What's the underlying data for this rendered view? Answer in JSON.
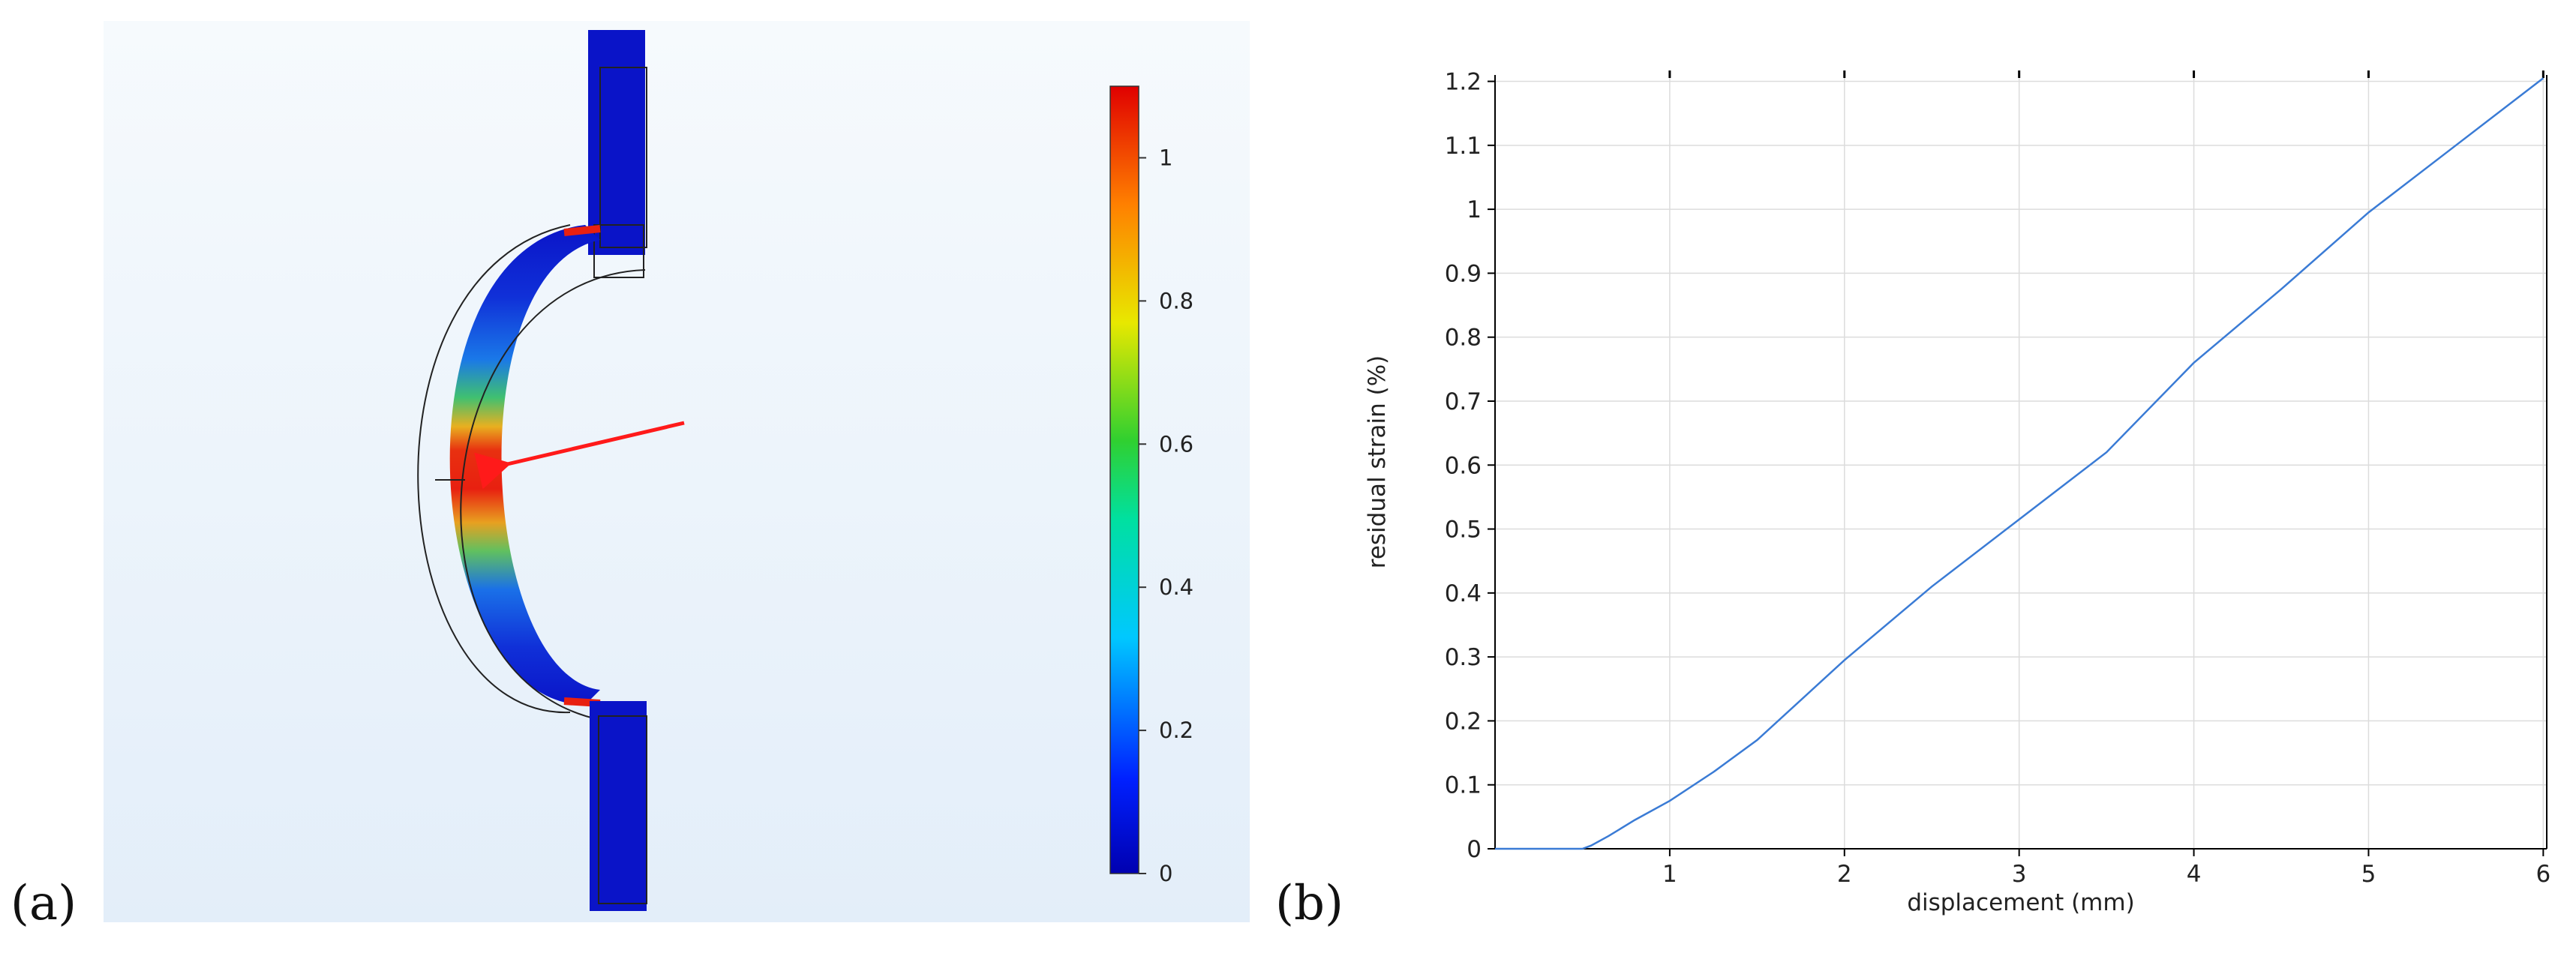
{
  "panels": {
    "a_label": "(a)",
    "b_label": "(b)"
  },
  "colors": {
    "background_gradient_top": "#f6fafd",
    "background_gradient_bottom": "#e3eef9",
    "part_blue": "#0a14c8",
    "hotspot_red": "#e41a10",
    "arrow": "#ff1a1a",
    "curve": "#3a7bd5",
    "grid": "#dcdcdc"
  },
  "colorbar": {
    "ticks": [
      "0",
      "0.2",
      "0.4",
      "0.6",
      "0.8",
      "1"
    ],
    "min": 0,
    "max": 1.1,
    "colormap": "rainbow (blue→cyan→green→yellow→red)"
  },
  "chart_data": [
    {
      "type": "line",
      "xlabel": "displacement (mm)",
      "ylabel": "residual strain (%)",
      "xlim": [
        0,
        6.02
      ],
      "ylim": [
        0,
        1.21
      ],
      "x_ticks": [
        "1",
        "2",
        "3",
        "4",
        "5",
        "6"
      ],
      "y_ticks": [
        "0",
        "0.1",
        "0.2",
        "0.3",
        "0.4",
        "0.5",
        "0.6",
        "0.7",
        "0.8",
        "0.9",
        "1",
        "1.1",
        "1.2"
      ],
      "grid": true,
      "series": [
        {
          "x": [
            0,
            0.5,
            0.55,
            0.65,
            0.8,
            1.0,
            1.25,
            1.5,
            2.0,
            2.5,
            3.0,
            3.5,
            4.0,
            4.5,
            5.0,
            5.5,
            6.0
          ],
          "y": [
            0,
            0,
            0.005,
            0.02,
            0.045,
            0.075,
            0.12,
            0.17,
            0.295,
            0.41,
            0.515,
            0.62,
            0.76,
            0.875,
            0.995,
            1.1,
            1.205
          ]
        }
      ]
    }
  ]
}
